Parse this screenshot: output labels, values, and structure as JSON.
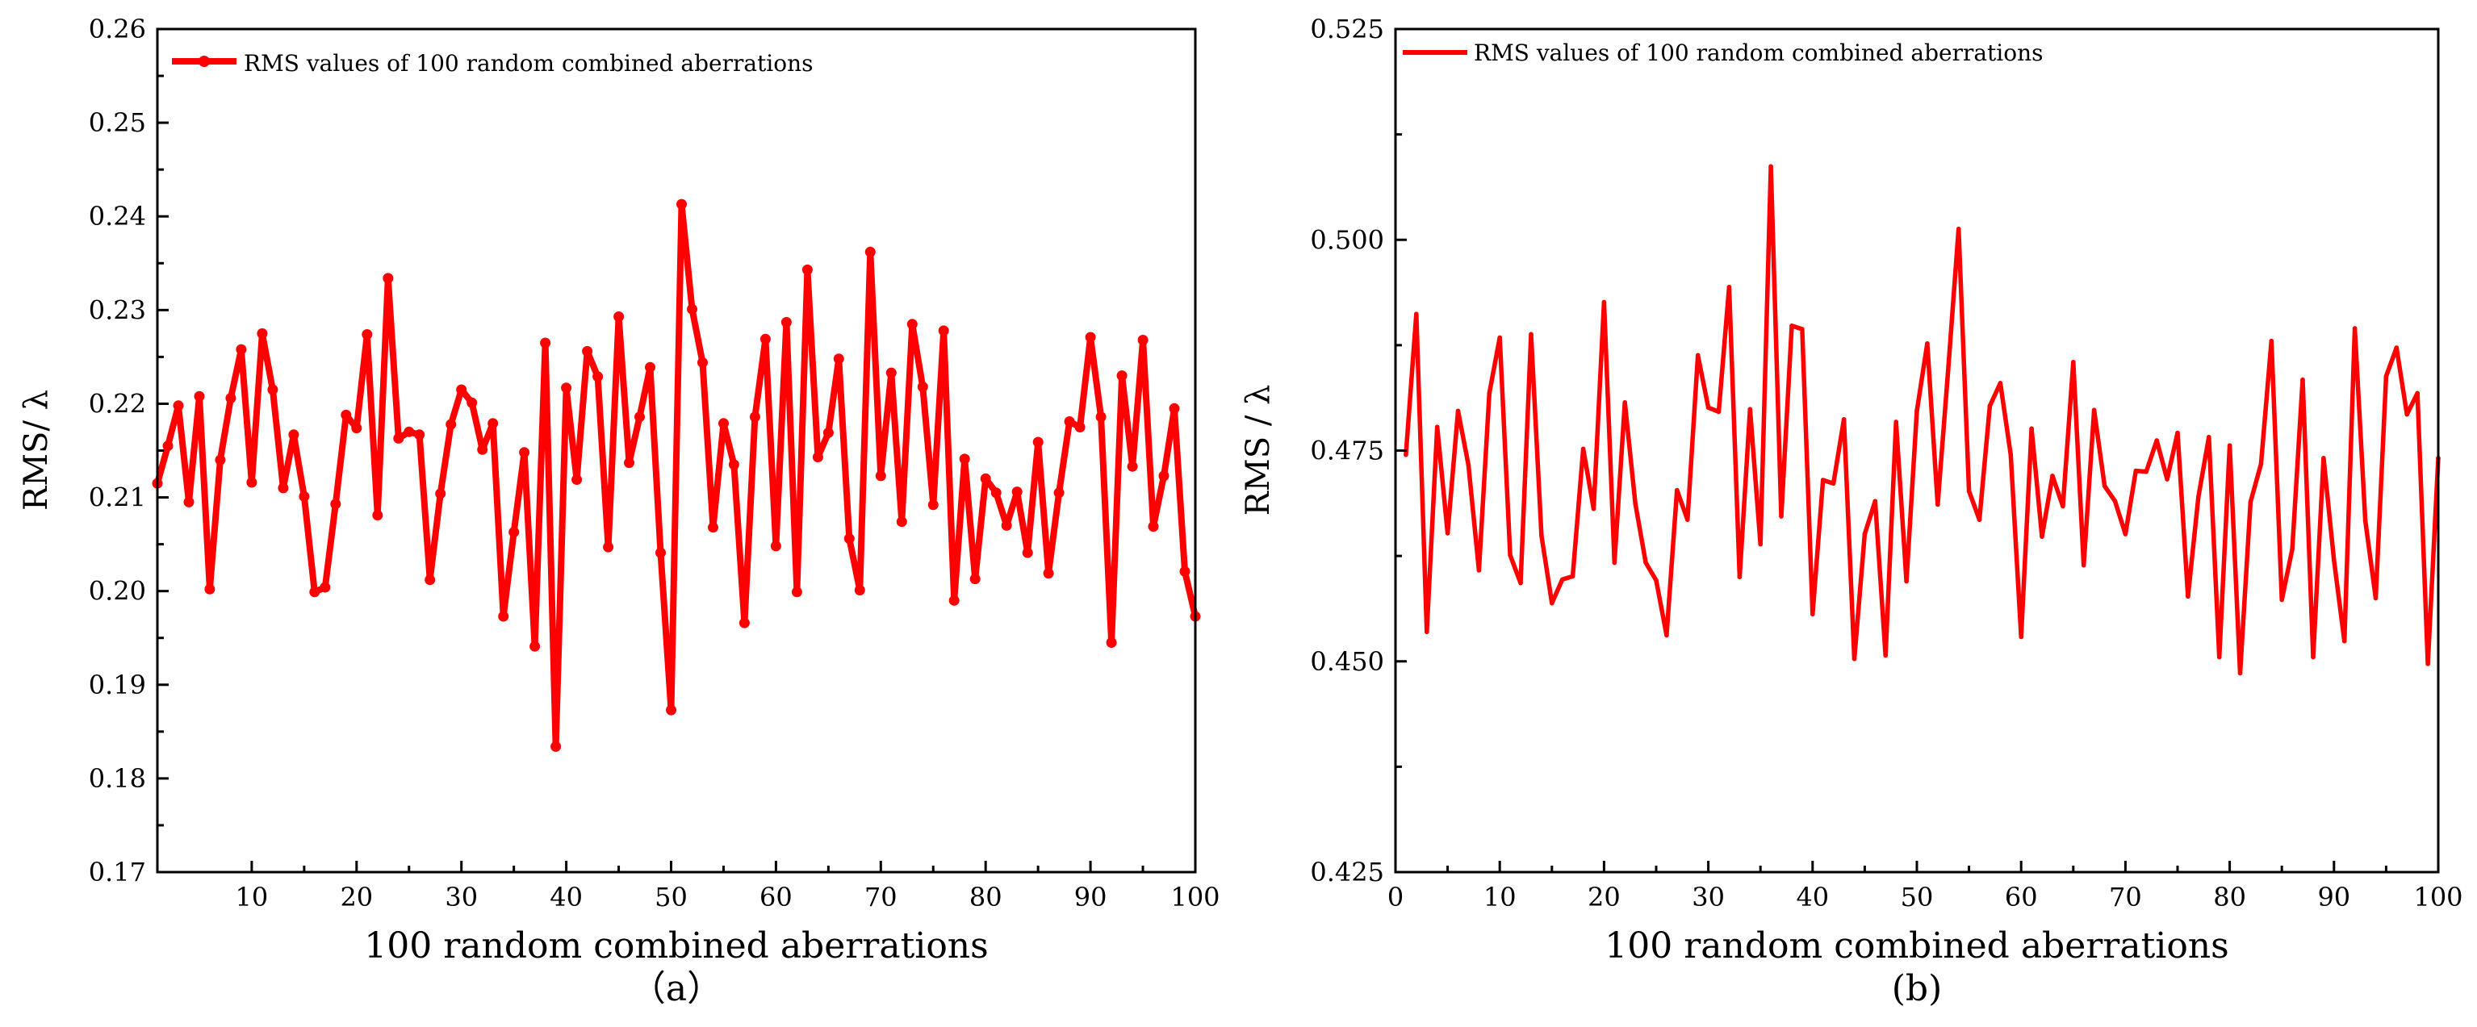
{
  "chart_data": [
    {
      "type": "line",
      "panel_label": "（a）",
      "xlabel": "100 random combined aberrations",
      "ylabel": "RMS/ λ",
      "xlim": [
        1,
        100
      ],
      "ylim": [
        0.17,
        0.26
      ],
      "x_ticks": [
        10,
        20,
        30,
        40,
        50,
        60,
        70,
        80,
        90,
        100
      ],
      "x_tick_labels": [
        "10",
        "20",
        "30",
        "40",
        "50",
        "60",
        "70",
        "80",
        "90",
        "100"
      ],
      "y_ticks": [
        0.17,
        0.18,
        0.19,
        0.2,
        0.21,
        0.22,
        0.23,
        0.24,
        0.25,
        0.26
      ],
      "y_tick_labels": [
        "0.17",
        "0.18",
        "0.19",
        "0.20",
        "0.21",
        "0.22",
        "0.23",
        "0.24",
        "0.25",
        "0.26"
      ],
      "grid": false,
      "legend_position": "top-left",
      "series": [
        {
          "name": "RMS values of 100 random combined aberrations",
          "color": "#ff0000",
          "marker": "circle",
          "x": [
            1,
            2,
            3,
            4,
            5,
            6,
            7,
            8,
            9,
            10,
            11,
            12,
            13,
            14,
            15,
            16,
            17,
            18,
            19,
            20,
            21,
            22,
            23,
            24,
            25,
            26,
            27,
            28,
            29,
            30,
            31,
            32,
            33,
            34,
            35,
            36,
            37,
            38,
            39,
            40,
            41,
            42,
            43,
            44,
            45,
            46,
            47,
            48,
            49,
            50,
            51,
            52,
            53,
            54,
            55,
            56,
            57,
            58,
            59,
            60,
            61,
            62,
            63,
            64,
            65,
            66,
            67,
            68,
            69,
            70,
            71,
            72,
            73,
            74,
            75,
            76,
            77,
            78,
            79,
            80,
            81,
            82,
            83,
            84,
            85,
            86,
            87,
            88,
            89,
            90,
            91,
            92,
            93,
            94,
            95,
            96,
            97,
            98,
            99,
            100
          ],
          "values": [
            0.2115,
            0.2155,
            0.2198,
            0.2095,
            0.2208,
            0.2002,
            0.214,
            0.2206,
            0.2258,
            0.2116,
            0.2275,
            0.2215,
            0.211,
            0.2167,
            0.2101,
            0.1999,
            0.2004,
            0.2093,
            0.2188,
            0.2174,
            0.2274,
            0.2081,
            0.2334,
            0.2163,
            0.217,
            0.2167,
            0.2012,
            0.2104,
            0.2178,
            0.2215,
            0.2201,
            0.2151,
            0.2179,
            0.1973,
            0.2063,
            0.2148,
            0.1941,
            0.2265,
            0.1834,
            0.2217,
            0.2119,
            0.2256,
            0.2229,
            0.2047,
            0.2293,
            0.2137,
            0.2186,
            0.2239,
            0.2041,
            0.1873,
            0.2413,
            0.2301,
            0.2244,
            0.2068,
            0.2179,
            0.2135,
            0.1966,
            0.2186,
            0.2269,
            0.2048,
            0.2287,
            0.1999,
            0.2343,
            0.2143,
            0.2169,
            0.2248,
            0.2056,
            0.2001,
            0.2362,
            0.2123,
            0.2233,
            0.2074,
            0.2285,
            0.2218,
            0.2092,
            0.2278,
            0.199,
            0.2141,
            0.2013,
            0.212,
            0.2105,
            0.207,
            0.2106,
            0.2041,
            0.2159,
            0.2019,
            0.2105,
            0.2181,
            0.2175,
            0.2271,
            0.2186,
            0.1945,
            0.223,
            0.2133,
            0.2268,
            0.2069,
            0.2123,
            0.2195,
            0.2021,
            0.1973
          ]
        }
      ]
    },
    {
      "type": "line",
      "panel_label": "(b)",
      "xlabel": "100 random combined aberrations",
      "ylabel": "RMS / λ",
      "xlim": [
        0,
        100
      ],
      "ylim": [
        0.425,
        0.525
      ],
      "x_ticks": [
        0,
        10,
        20,
        30,
        40,
        50,
        60,
        70,
        80,
        90,
        100
      ],
      "x_tick_labels": [
        "0",
        "10",
        "20",
        "30",
        "40",
        "50",
        "60",
        "70",
        "80",
        "90",
        "100"
      ],
      "y_ticks": [
        0.425,
        0.45,
        0.475,
        0.5,
        0.525
      ],
      "y_tick_labels": [
        "0.425",
        "0.450",
        "0.475",
        "0.500",
        "0.525"
      ],
      "grid": false,
      "legend_position": "top-left",
      "series": [
        {
          "name": "RMS values of 100 random combined aberrations",
          "color": "#ff0000",
          "marker": "dot",
          "x": [
            1,
            2,
            3,
            4,
            5,
            6,
            7,
            8,
            9,
            10,
            11,
            12,
            13,
            14,
            15,
            16,
            17,
            18,
            19,
            20,
            21,
            22,
            23,
            24,
            25,
            26,
            27,
            28,
            29,
            30,
            31,
            32,
            33,
            34,
            35,
            36,
            37,
            38,
            39,
            40,
            41,
            42,
            43,
            44,
            45,
            46,
            47,
            48,
            49,
            50,
            51,
            52,
            53,
            54,
            55,
            56,
            57,
            58,
            59,
            60,
            61,
            62,
            63,
            64,
            65,
            66,
            67,
            68,
            69,
            70,
            71,
            72,
            73,
            74,
            75,
            76,
            77,
            78,
            79,
            80,
            81,
            82,
            83,
            84,
            85,
            86,
            87,
            88,
            89,
            90,
            91,
            92,
            93,
            94,
            95,
            96,
            97,
            98,
            99,
            100
          ],
          "values": [
            0.4745,
            0.4912,
            0.4535,
            0.4778,
            0.4652,
            0.4797,
            0.4733,
            0.4608,
            0.4818,
            0.4884,
            0.4626,
            0.4593,
            0.4888,
            0.4649,
            0.4569,
            0.4597,
            0.4601,
            0.4752,
            0.4681,
            0.4926,
            0.4617,
            0.4807,
            0.4687,
            0.4617,
            0.4596,
            0.4531,
            0.4703,
            0.4668,
            0.4863,
            0.4801,
            0.4796,
            0.4944,
            0.46,
            0.4799,
            0.4639,
            0.5087,
            0.4672,
            0.4898,
            0.4894,
            0.4556,
            0.4715,
            0.4711,
            0.4787,
            0.4503,
            0.4651,
            0.469,
            0.4507,
            0.4784,
            0.4595,
            0.4797,
            0.4877,
            0.4686,
            0.4846,
            0.5013,
            0.4702,
            0.4668,
            0.4803,
            0.483,
            0.4745,
            0.4529,
            0.4776,
            0.4648,
            0.472,
            0.4684,
            0.4855,
            0.4614,
            0.4798,
            0.4708,
            0.469,
            0.4651,
            0.4726,
            0.4725,
            0.4762,
            0.4716,
            0.4771,
            0.4577,
            0.4695,
            0.4766,
            0.4505,
            0.4756,
            0.4486,
            0.4689,
            0.4734,
            0.488,
            0.4573,
            0.4633,
            0.4834,
            0.4505,
            0.4741,
            0.462,
            0.4524,
            0.4895,
            0.4667,
            0.4575,
            0.4838,
            0.4872,
            0.4793,
            0.4818,
            0.4497,
            0.4741
          ]
        }
      ]
    }
  ]
}
